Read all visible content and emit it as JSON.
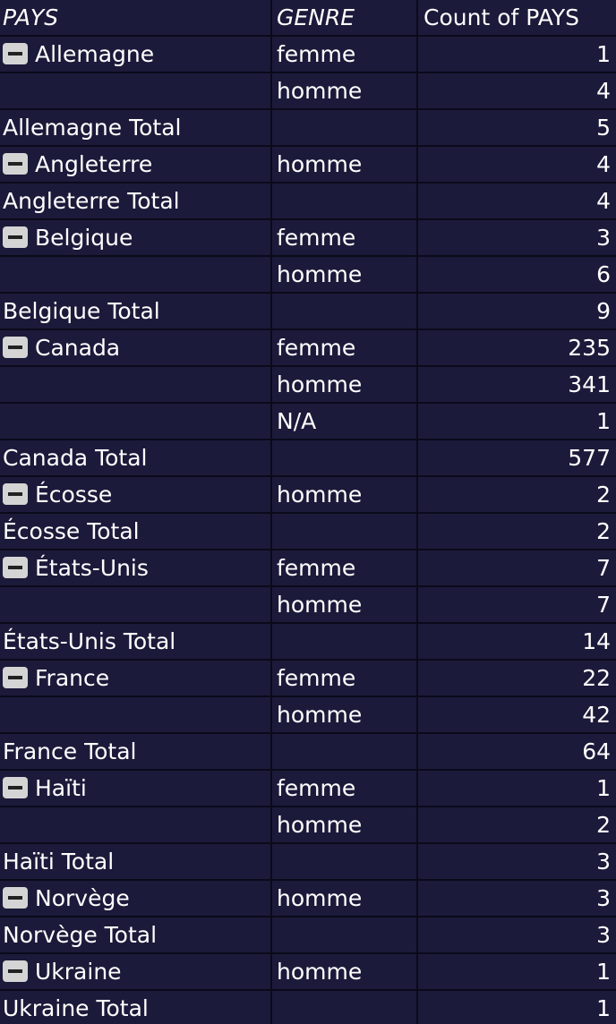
{
  "header": {
    "pays": "PAYS",
    "genre": "GENRE",
    "count": "Count of  PAYS"
  },
  "rows": [
    {
      "pays": "Allemagne",
      "genre": "femme",
      "count": "1",
      "toggle": true
    },
    {
      "pays": "",
      "genre": "homme",
      "count": "4",
      "toggle": false
    },
    {
      "pays": "Allemagne  Total",
      "genre": "",
      "count": "5",
      "toggle": false
    },
    {
      "pays": "Angleterre",
      "genre": "homme",
      "count": "4",
      "toggle": true
    },
    {
      "pays": "Angleterre Total",
      "genre": "",
      "count": "4",
      "toggle": false
    },
    {
      "pays": "Belgique",
      "genre": "femme",
      "count": "3",
      "toggle": true
    },
    {
      "pays": "",
      "genre": "homme",
      "count": "6",
      "toggle": false
    },
    {
      "pays": "Belgique Total",
      "genre": "",
      "count": "9",
      "toggle": false
    },
    {
      "pays": "Canada",
      "genre": "femme",
      "count": "235",
      "toggle": true
    },
    {
      "pays": "",
      "genre": "homme",
      "count": "341",
      "toggle": false
    },
    {
      "pays": "",
      "genre": "N/A",
      "count": "1",
      "toggle": false
    },
    {
      "pays": "Canada Total",
      "genre": "",
      "count": "577",
      "toggle": false
    },
    {
      "pays": "Écosse",
      "genre": "homme",
      "count": "2",
      "toggle": true
    },
    {
      "pays": "Écosse Total",
      "genre": "",
      "count": "2",
      "toggle": false
    },
    {
      "pays": "États-Unis",
      "genre": "femme",
      "count": "7",
      "toggle": true
    },
    {
      "pays": "",
      "genre": "homme",
      "count": "7",
      "toggle": false
    },
    {
      "pays": "États-Unis Total",
      "genre": "",
      "count": "14",
      "toggle": false
    },
    {
      "pays": "France",
      "genre": "femme",
      "count": "22",
      "toggle": true
    },
    {
      "pays": "",
      "genre": "homme",
      "count": "42",
      "toggle": false
    },
    {
      "pays": "France Total",
      "genre": "",
      "count": "64",
      "toggle": false
    },
    {
      "pays": "Haïti",
      "genre": "femme",
      "count": "1",
      "toggle": true
    },
    {
      "pays": "",
      "genre": "homme",
      "count": "2",
      "toggle": false
    },
    {
      "pays": "Haïti Total",
      "genre": "",
      "count": "3",
      "toggle": false
    },
    {
      "pays": "Norvège",
      "genre": "homme",
      "count": "3",
      "toggle": true
    },
    {
      "pays": "Norvège Total",
      "genre": "",
      "count": "3",
      "toggle": false
    },
    {
      "pays": "Ukraine",
      "genre": "homme",
      "count": "1",
      "toggle": true
    },
    {
      "pays": "Ukraine Total",
      "genre": "",
      "count": "1",
      "toggle": false
    }
  ]
}
